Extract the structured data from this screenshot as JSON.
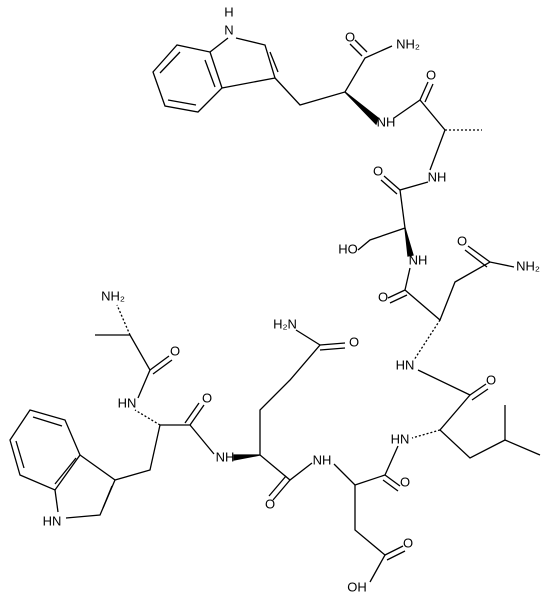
{
  "atoms": [
    {
      "label": "H"
    },
    {
      "label": "N"
    },
    {
      "label": "O"
    },
    {
      "label": "NH₂"
    },
    {
      "label": "O"
    },
    {
      "label": "NH"
    },
    {
      "label": "NH"
    },
    {
      "label": "O"
    },
    {
      "label": "HO"
    },
    {
      "label": "NH"
    },
    {
      "label": "O"
    },
    {
      "label": "NH₂"
    },
    {
      "label": "O"
    },
    {
      "label": "HN"
    },
    {
      "label": "O"
    },
    {
      "label": "H₂N"
    },
    {
      "label": "O"
    },
    {
      "label": "NH₂"
    },
    {
      "label": "O"
    },
    {
      "label": "HN"
    },
    {
      "label": "O"
    },
    {
      "label": "HN"
    },
    {
      "label": "NH"
    },
    {
      "label": "NH"
    },
    {
      "label": "O"
    },
    {
      "label": "O"
    },
    {
      "label": "HN"
    },
    {
      "label": "O"
    },
    {
      "label": "OH"
    }
  ]
}
